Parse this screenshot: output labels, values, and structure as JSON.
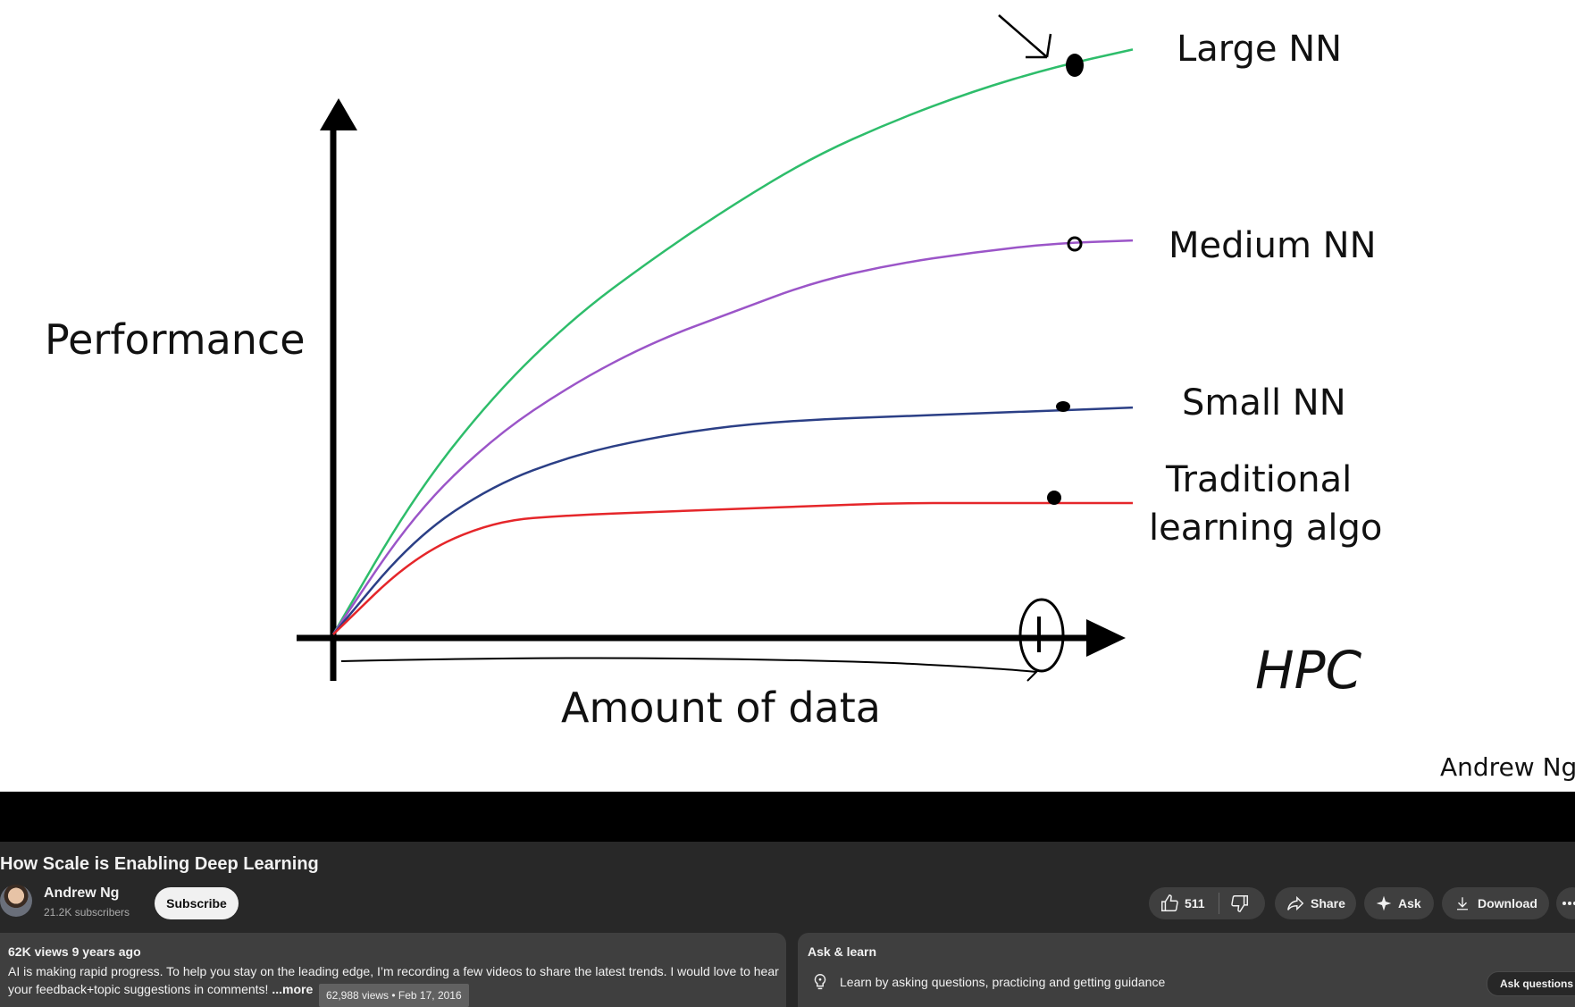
{
  "chart_data": {
    "type": "line",
    "xlabel": "Amount of data",
    "ylabel": "Performance",
    "series": [
      {
        "name": "Large NN",
        "color": "#2ebd6b",
        "x": [
          0,
          0.1,
          0.2,
          0.3,
          0.4,
          0.5,
          0.6,
          0.7,
          0.8,
          0.9,
          1.0
        ],
        "y": [
          0,
          0.23,
          0.4,
          0.53,
          0.63,
          0.72,
          0.8,
          0.86,
          0.91,
          0.95,
          0.98
        ]
      },
      {
        "name": "Medium NN",
        "color": "#9b55c8",
        "x": [
          0,
          0.1,
          0.2,
          0.3,
          0.4,
          0.5,
          0.6,
          0.7,
          0.8,
          0.9,
          1.0
        ],
        "y": [
          0,
          0.2,
          0.33,
          0.42,
          0.49,
          0.54,
          0.59,
          0.62,
          0.64,
          0.655,
          0.66
        ]
      },
      {
        "name": "Small NN",
        "color": "#2b3f86",
        "x": [
          0,
          0.1,
          0.2,
          0.3,
          0.4,
          0.5,
          0.6,
          0.7,
          0.8,
          0.9,
          1.0
        ],
        "y": [
          0,
          0.16,
          0.25,
          0.3,
          0.33,
          0.35,
          0.36,
          0.365,
          0.37,
          0.375,
          0.38
        ]
      },
      {
        "name": "Traditional learning algo",
        "color": "#e5262a",
        "x": [
          0,
          0.1,
          0.2,
          0.3,
          0.4,
          0.5,
          0.6,
          0.7,
          0.8,
          0.9,
          1.0
        ],
        "y": [
          0,
          0.13,
          0.19,
          0.2,
          0.205,
          0.21,
          0.215,
          0.22,
          0.22,
          0.22,
          0.22
        ]
      }
    ],
    "labels": {
      "large": "Large NN",
      "medium": "Medium NN",
      "small": "Small NN",
      "trad_line1": "Traditional",
      "trad_line2": "learning algo"
    },
    "annotation": "HPC",
    "credit": "Andrew Ng"
  },
  "video": {
    "title": "How Scale is Enabling Deep Learning",
    "channel_name": "Andrew Ng",
    "subscribers": "21.2K subscribers",
    "subscribe_label": "Subscribe",
    "likes": "511",
    "share_label": "Share",
    "ask_label": "Ask",
    "download_label": "Download"
  },
  "description": {
    "stats": "62K views  9 years ago",
    "text": "AI is making rapid progress. To help you stay on the leading edge, I’m recording a few videos to share the latest trends. I would love to hear your feedback+topic suggestions in comments! ",
    "more_label": "...more",
    "tooltip": "62,988 views • Feb 17, 2016"
  },
  "ask_learn": {
    "title": "Ask & learn",
    "text": "Learn by asking questions, practicing and getting guidance",
    "button": "Ask questions"
  },
  "icons": [
    "thumbs-up-icon",
    "thumbs-down-icon",
    "share-icon",
    "sparkle-icon",
    "download-icon",
    "more-icon",
    "lightbulb-icon"
  ]
}
